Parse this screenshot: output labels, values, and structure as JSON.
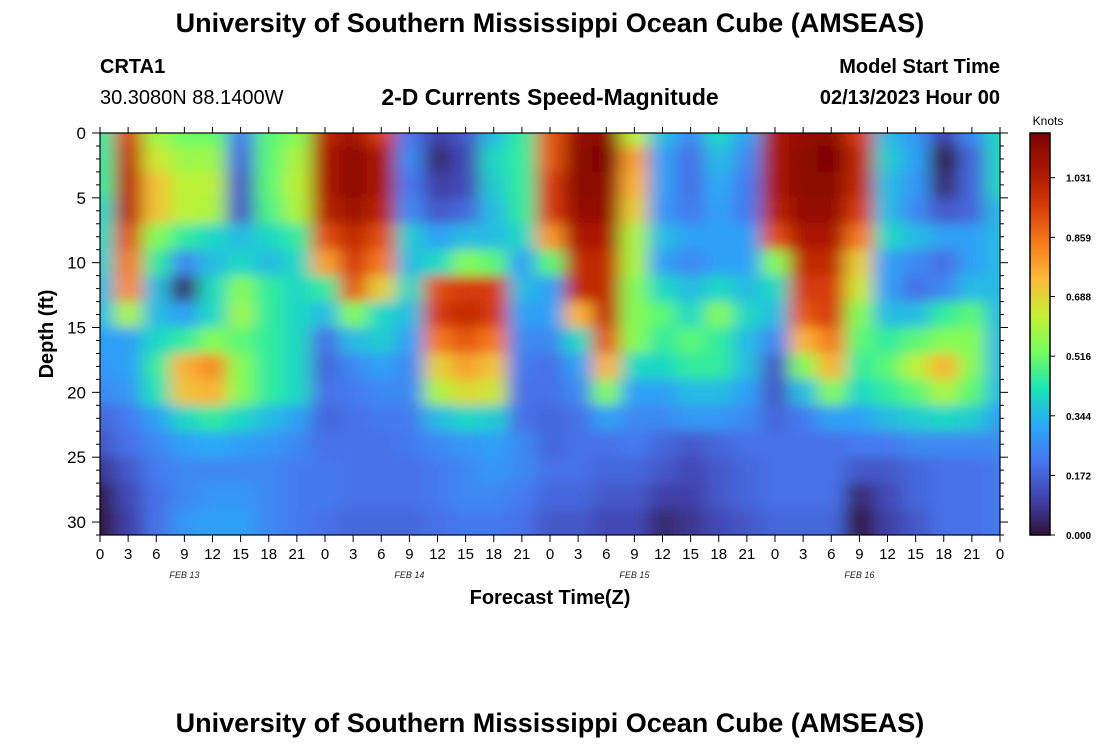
{
  "header": {
    "title_top": "University of Southern Mississippi Ocean Cube (AMSEAS)",
    "station_id": "CRTA1",
    "coordinates": "30.3080N  88.1400W",
    "subtitle": "2-D Currents Speed-Magnitude",
    "model_start_label": "Model Start Time",
    "model_start_value": "02/13/2023 Hour 00",
    "title_bottom": "University of Southern Mississippi Ocean Cube (AMSEAS)"
  },
  "colors": {
    "colormap": [
      "#30123b",
      "#4143ad",
      "#4776ee",
      "#2ba8f8",
      "#1ae4b6",
      "#72fe5e",
      "#c5f034",
      "#faba39",
      "#f67c1b",
      "#d63b08",
      "#a81601",
      "#7a0403"
    ]
  },
  "chart_data": {
    "type": "heatmap",
    "title": "2-D Currents Speed-Magnitude",
    "xlabel": "Forecast Time(Z)",
    "ylabel": "Depth (ft)",
    "x_range_hours": [
      0,
      96
    ],
    "y_range_ft": [
      0,
      31
    ],
    "x_ticks": [
      "0",
      "3",
      "6",
      "9",
      "12",
      "15",
      "18",
      "21",
      "0",
      "3",
      "6",
      "9",
      "12",
      "15",
      "18",
      "21",
      "0",
      "3",
      "6",
      "9",
      "12",
      "15",
      "18",
      "21",
      "0",
      "3",
      "6",
      "9",
      "12",
      "15",
      "18",
      "21",
      "0"
    ],
    "y_ticks": [
      "0",
      "5",
      "10",
      "15",
      "20",
      "25",
      "30"
    ],
    "date_labels": [
      "FEB 13",
      "FEB 14",
      "FEB 15",
      "FEB 16"
    ],
    "colorbar": {
      "title": "Knots",
      "ticks": [
        "1.031",
        "0.859",
        "0.688",
        "0.516",
        "0.344",
        "0.172",
        "0.000"
      ],
      "range": [
        0.0,
        1.16
      ]
    },
    "depth_levels_ft": [
      0,
      2,
      4,
      6,
      8,
      10,
      12,
      14,
      16,
      18,
      20,
      22,
      24,
      26,
      28,
      30
    ],
    "time_hours": [
      0,
      3,
      6,
      9,
      12,
      15,
      18,
      21,
      24,
      27,
      30,
      33,
      36,
      39,
      42,
      45,
      48,
      51,
      54,
      57,
      60,
      63,
      66,
      69,
      72,
      75,
      78,
      81,
      84,
      87,
      90,
      93,
      96
    ],
    "values_knots": [
      [
        0.45,
        0.95,
        0.58,
        0.52,
        0.52,
        0.22,
        0.5,
        0.55,
        1.02,
        1.08,
        0.95,
        0.22,
        0.1,
        0.15,
        0.35,
        0.45,
        0.9,
        1.1,
        1.12,
        0.62,
        0.35,
        0.25,
        0.4,
        0.3,
        1.05,
        1.1,
        1.12,
        0.95,
        0.35,
        0.28,
        0.1,
        0.25,
        0.4
      ],
      [
        0.45,
        1.0,
        0.65,
        0.58,
        0.58,
        0.18,
        0.5,
        0.6,
        1.05,
        1.12,
        1.05,
        0.25,
        0.05,
        0.12,
        0.4,
        0.45,
        0.9,
        1.12,
        1.15,
        0.78,
        0.3,
        0.2,
        0.35,
        0.25,
        1.05,
        1.12,
        1.15,
        1.0,
        0.38,
        0.3,
        0.0,
        0.18,
        0.4
      ],
      [
        0.45,
        1.02,
        0.72,
        0.62,
        0.62,
        0.15,
        0.5,
        0.62,
        1.05,
        1.12,
        1.05,
        0.22,
        0.1,
        0.12,
        0.38,
        0.45,
        0.95,
        1.12,
        1.12,
        0.75,
        0.3,
        0.2,
        0.32,
        0.22,
        1.05,
        1.12,
        1.12,
        1.0,
        0.35,
        0.28,
        0.05,
        0.18,
        0.4
      ],
      [
        0.4,
        1.02,
        0.72,
        0.62,
        0.6,
        0.15,
        0.48,
        0.6,
        1.02,
        1.08,
        1.02,
        0.25,
        0.15,
        0.18,
        0.35,
        0.45,
        0.95,
        1.1,
        1.1,
        0.7,
        0.28,
        0.22,
        0.3,
        0.22,
        1.02,
        1.1,
        1.1,
        0.95,
        0.35,
        0.25,
        0.15,
        0.18,
        0.35
      ],
      [
        0.4,
        0.92,
        0.55,
        0.45,
        0.4,
        0.35,
        0.4,
        0.45,
        0.92,
        1.0,
        0.92,
        0.38,
        0.3,
        0.35,
        0.35,
        0.4,
        0.8,
        1.05,
        1.05,
        0.6,
        0.35,
        0.3,
        0.3,
        0.3,
        0.92,
        1.05,
        1.05,
        0.85,
        0.4,
        0.35,
        0.3,
        0.3,
        0.35
      ],
      [
        0.38,
        0.85,
        0.45,
        0.25,
        0.35,
        0.4,
        0.35,
        0.4,
        0.78,
        0.95,
        0.85,
        0.35,
        0.4,
        0.55,
        0.5,
        0.3,
        0.5,
        1.0,
        1.0,
        0.6,
        0.3,
        0.25,
        0.3,
        0.3,
        0.55,
        1.0,
        1.0,
        0.7,
        0.3,
        0.25,
        0.2,
        0.3,
        0.35
      ],
      [
        0.35,
        0.82,
        0.35,
        0.05,
        0.4,
        0.55,
        0.45,
        0.4,
        0.45,
        0.9,
        0.7,
        0.4,
        0.92,
        0.95,
        0.95,
        0.35,
        0.3,
        1.0,
        1.0,
        0.55,
        0.4,
        0.35,
        0.4,
        0.35,
        0.4,
        0.95,
        0.95,
        0.65,
        0.3,
        0.2,
        0.25,
        0.35,
        0.35
      ],
      [
        0.35,
        0.6,
        0.35,
        0.3,
        0.4,
        0.58,
        0.45,
        0.4,
        0.35,
        0.55,
        0.4,
        0.35,
        0.95,
        1.0,
        0.95,
        0.3,
        0.3,
        0.75,
        1.0,
        0.55,
        0.5,
        0.4,
        0.55,
        0.4,
        0.35,
        0.9,
        0.95,
        0.55,
        0.35,
        0.35,
        0.45,
        0.5,
        0.35
      ],
      [
        0.3,
        0.3,
        0.4,
        0.45,
        0.55,
        0.5,
        0.45,
        0.4,
        0.2,
        0.35,
        0.38,
        0.3,
        0.85,
        0.9,
        0.85,
        0.25,
        0.25,
        0.4,
        0.9,
        0.55,
        0.45,
        0.5,
        0.45,
        0.35,
        0.25,
        0.75,
        0.85,
        0.5,
        0.45,
        0.5,
        0.55,
        0.55,
        0.35
      ],
      [
        0.28,
        0.3,
        0.45,
        0.75,
        0.82,
        0.55,
        0.45,
        0.4,
        0.18,
        0.25,
        0.3,
        0.25,
        0.7,
        0.78,
        0.72,
        0.22,
        0.2,
        0.3,
        0.75,
        0.4,
        0.4,
        0.45,
        0.45,
        0.35,
        0.15,
        0.55,
        0.75,
        0.45,
        0.5,
        0.62,
        0.75,
        0.55,
        0.35
      ],
      [
        0.25,
        0.28,
        0.42,
        0.72,
        0.75,
        0.55,
        0.45,
        0.4,
        0.2,
        0.22,
        0.25,
        0.25,
        0.6,
        0.68,
        0.65,
        0.2,
        0.2,
        0.25,
        0.55,
        0.3,
        0.3,
        0.35,
        0.35,
        0.3,
        0.15,
        0.35,
        0.55,
        0.4,
        0.45,
        0.5,
        0.6,
        0.5,
        0.35
      ],
      [
        0.18,
        0.22,
        0.3,
        0.4,
        0.45,
        0.4,
        0.35,
        0.3,
        0.18,
        0.2,
        0.22,
        0.22,
        0.35,
        0.4,
        0.38,
        0.2,
        0.18,
        0.2,
        0.3,
        0.25,
        0.25,
        0.28,
        0.28,
        0.25,
        0.18,
        0.22,
        0.3,
        0.3,
        0.35,
        0.38,
        0.4,
        0.38,
        0.3
      ],
      [
        0.15,
        0.2,
        0.25,
        0.3,
        0.32,
        0.3,
        0.28,
        0.25,
        0.2,
        0.2,
        0.2,
        0.22,
        0.25,
        0.28,
        0.3,
        0.25,
        0.18,
        0.2,
        0.2,
        0.22,
        0.18,
        0.15,
        0.18,
        0.2,
        0.2,
        0.2,
        0.2,
        0.22,
        0.22,
        0.25,
        0.25,
        0.25,
        0.25
      ],
      [
        0.08,
        0.15,
        0.22,
        0.25,
        0.25,
        0.25,
        0.25,
        0.22,
        0.22,
        0.2,
        0.2,
        0.2,
        0.22,
        0.25,
        0.28,
        0.25,
        0.2,
        0.2,
        0.18,
        0.18,
        0.15,
        0.12,
        0.15,
        0.18,
        0.2,
        0.2,
        0.2,
        0.15,
        0.15,
        0.18,
        0.2,
        0.2,
        0.22
      ],
      [
        0.02,
        0.12,
        0.2,
        0.25,
        0.28,
        0.28,
        0.25,
        0.22,
        0.22,
        0.2,
        0.2,
        0.2,
        0.22,
        0.25,
        0.25,
        0.22,
        0.18,
        0.18,
        0.15,
        0.15,
        0.1,
        0.1,
        0.15,
        0.18,
        0.2,
        0.2,
        0.2,
        0.05,
        0.12,
        0.18,
        0.2,
        0.2,
        0.22
      ],
      [
        0.0,
        0.1,
        0.2,
        0.28,
        0.3,
        0.3,
        0.25,
        0.22,
        0.2,
        0.18,
        0.18,
        0.18,
        0.2,
        0.22,
        0.22,
        0.2,
        0.15,
        0.15,
        0.12,
        0.12,
        0.05,
        0.08,
        0.12,
        0.15,
        0.18,
        0.18,
        0.18,
        0.0,
        0.1,
        0.15,
        0.2,
        0.2,
        0.22
      ]
    ]
  }
}
